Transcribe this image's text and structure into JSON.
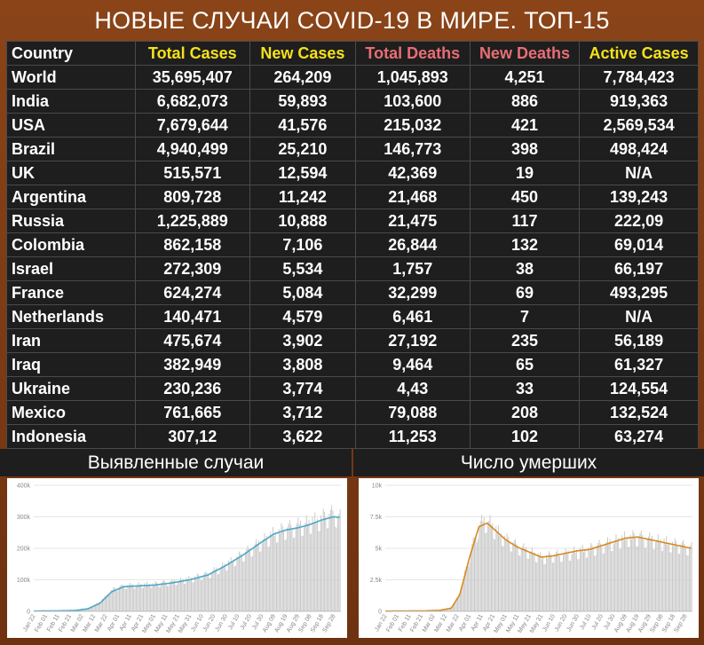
{
  "title": "НОВЫЕ СЛУЧАИ COVID-19 В МИРЕ. ТОП-15",
  "table": {
    "headers": [
      {
        "label": "Country",
        "color": "#ffffff"
      },
      {
        "label": "Total Cases",
        "color": "#f5e11a"
      },
      {
        "label": "New Cases",
        "color": "#f5e11a"
      },
      {
        "label": "Total Deaths",
        "color": "#e86e74"
      },
      {
        "label": "New Deaths",
        "color": "#e86e74"
      },
      {
        "label": "Active Cases",
        "color": "#f5e11a"
      }
    ],
    "rows": [
      [
        "World",
        "35,695,407",
        "264,209",
        "1,045,893",
        "4,251",
        "7,784,423"
      ],
      [
        "India",
        "6,682,073",
        "59,893",
        "103,600",
        "886",
        "919,363"
      ],
      [
        "USA",
        "7,679,644",
        "41,576",
        "215,032",
        "421",
        "2,569,534"
      ],
      [
        "Brazil",
        "4,940,499",
        "25,210",
        "146,773",
        "398",
        "498,424"
      ],
      [
        "UK",
        "515,571",
        "12,594",
        "42,369",
        "19",
        "N/A"
      ],
      [
        "Argentina",
        "809,728",
        "11,242",
        "21,468",
        "450",
        "139,243"
      ],
      [
        "Russia",
        "1,225,889",
        "10,888",
        "21,475",
        "117",
        "222,09"
      ],
      [
        "Colombia",
        "862,158",
        "7,106",
        "26,844",
        "132",
        "69,014"
      ],
      [
        "Israel",
        "272,309",
        "5,534",
        "1,757",
        "38",
        "66,197"
      ],
      [
        "France",
        "624,274",
        "5,084",
        "32,299",
        "69",
        "493,295"
      ],
      [
        "Netherlands",
        "140,471",
        "4,579",
        "6,461",
        "7",
        "N/A"
      ],
      [
        "Iran",
        "475,674",
        "3,902",
        "27,192",
        "235",
        "56,189"
      ],
      [
        "Iraq",
        "382,949",
        "3,808",
        "9,464",
        "65",
        "61,327"
      ],
      [
        "Ukraine",
        "230,236",
        "3,774",
        "4,43",
        "33",
        "124,554"
      ],
      [
        "Mexico",
        "761,665",
        "3,712",
        "79,088",
        "208",
        "132,524"
      ],
      [
        "Indonesia",
        "307,12",
        "3,622",
        "11,253",
        "102",
        "63,274"
      ]
    ]
  },
  "panels": {
    "left_title": "Выявленные случаи",
    "right_title": "Число умерших"
  },
  "chart_data": [
    {
      "type": "bar",
      "title": "Выявленные случаи",
      "xlabel": "",
      "ylabel": "",
      "ylim": [
        0,
        400000
      ],
      "yticks": [
        "0",
        "100k",
        "200k",
        "300k",
        "400k"
      ],
      "ytick_values": [
        0,
        100000,
        200000,
        300000,
        400000
      ],
      "xticks": [
        "Jan 22",
        "Feb 01",
        "Feb 11",
        "Feb 21",
        "Mar 02",
        "Mar 12",
        "Mar 22",
        "Apr 01",
        "Apr 11",
        "Apr 21",
        "May 01",
        "May 11",
        "May 21",
        "May 31",
        "Jun 10",
        "Jun 20",
        "Jun 30",
        "Jul 10",
        "Jul 20",
        "Jul 30",
        "Aug 09",
        "Aug 19",
        "Aug 29",
        "Sep 08",
        "Sep 18",
        "Sep 28"
      ],
      "series": [
        {
          "name": "",
          "kind": "bars",
          "color": "#c8c8c8",
          "anchors_day": [
            0,
            20,
            35,
            45,
            55,
            65,
            75,
            85,
            100,
            115,
            130,
            145,
            160,
            175,
            190,
            200,
            210,
            220,
            230,
            240,
            250,
            255
          ],
          "anchors_value": [
            1000,
            2000,
            3000,
            10000,
            30000,
            70000,
            82000,
            85000,
            88000,
            95000,
            105000,
            120000,
            150000,
            185000,
            225000,
            250000,
            265000,
            275000,
            285000,
            300000,
            315000,
            300000
          ]
        },
        {
          "name": "",
          "kind": "line",
          "color": "#4aa8c6",
          "anchors_day": [
            0,
            20,
            35,
            45,
            55,
            65,
            75,
            85,
            100,
            115,
            130,
            145,
            160,
            175,
            190,
            200,
            210,
            220,
            230,
            240,
            250,
            255
          ],
          "anchors_value": [
            800,
            1500,
            2500,
            8000,
            25000,
            62000,
            78000,
            80000,
            83000,
            90000,
            100000,
            115000,
            145000,
            180000,
            220000,
            245000,
            258000,
            265000,
            275000,
            290000,
            300000,
            298000
          ]
        }
      ]
    },
    {
      "type": "bar",
      "title": "Число умерших",
      "xlabel": "",
      "ylabel": "",
      "ylim": [
        0,
        10000
      ],
      "yticks": [
        "0",
        "2.5k",
        "5k",
        "7.5k",
        "10k"
      ],
      "ytick_values": [
        0,
        2500,
        5000,
        7500,
        10000
      ],
      "xticks": [
        "Jan 22",
        "Feb 01",
        "Feb 11",
        "Feb 21",
        "Mar 02",
        "Mar 12",
        "Mar 22",
        "Apr 01",
        "Apr 11",
        "Apr 21",
        "May 01",
        "May 11",
        "May 21",
        "May 31",
        "Jun 10",
        "Jun 20",
        "Jun 30",
        "Jul 10",
        "Jul 20",
        "Jul 30",
        "Aug 09",
        "Aug 19",
        "Aug 29",
        "Sep 08",
        "Sep 18",
        "Sep 28"
      ],
      "series": [
        {
          "name": "",
          "kind": "bars",
          "color": "#c8c8c8",
          "anchors_day": [
            0,
            30,
            45,
            55,
            62,
            70,
            78,
            85,
            92,
            100,
            110,
            120,
            130,
            140,
            150,
            160,
            170,
            180,
            190,
            200,
            210,
            220,
            230,
            240,
            250,
            255
          ],
          "anchors_value": [
            20,
            40,
            80,
            300,
            1500,
            4500,
            7000,
            7300,
            6500,
            5800,
            5200,
            4800,
            4300,
            4500,
            4600,
            4800,
            5000,
            5300,
            5600,
            5900,
            6000,
            5800,
            5600,
            5400,
            5200,
            5100
          ]
        },
        {
          "name": "",
          "kind": "line",
          "color": "#d68a1c",
          "anchors_day": [
            0,
            30,
            45,
            55,
            62,
            70,
            78,
            85,
            92,
            100,
            110,
            120,
            130,
            140,
            150,
            160,
            170,
            180,
            190,
            200,
            210,
            220,
            230,
            240,
            250,
            255
          ],
          "anchors_value": [
            15,
            30,
            70,
            250,
            1300,
            4200,
            6700,
            7000,
            6400,
            5700,
            5100,
            4700,
            4300,
            4400,
            4600,
            4800,
            4900,
            5200,
            5500,
            5800,
            5900,
            5700,
            5500,
            5300,
            5100,
            5000
          ]
        }
      ]
    }
  ]
}
